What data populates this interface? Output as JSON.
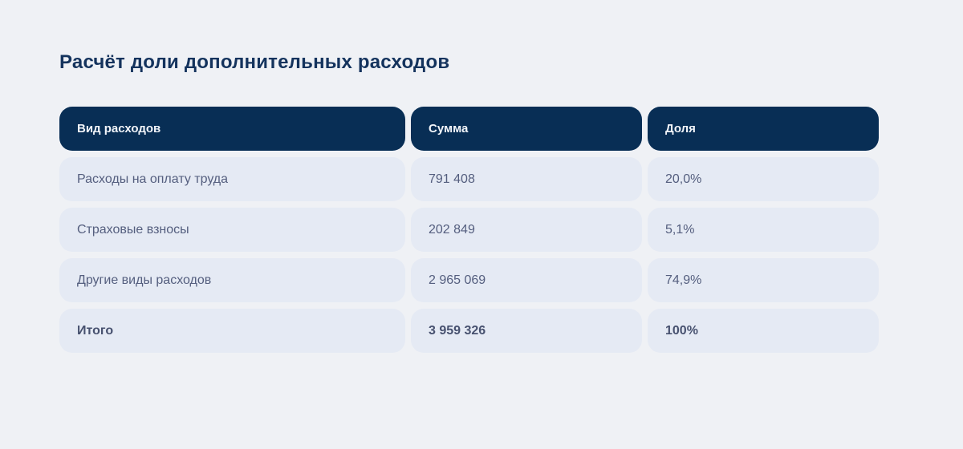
{
  "page_title": "Расчёт доли дополнительных расходов",
  "colors": {
    "page_background": "#eff1f5",
    "header_background": "#082e55",
    "header_text": "#f2f5fa",
    "cell_background": "#e5eaf4",
    "cell_text": "#545e7e",
    "title_text": "#14335d"
  },
  "table": {
    "columns": [
      "Вид расходов",
      "Сумма",
      "Доля"
    ],
    "rows": [
      {
        "name": "Расходы на оплату труда",
        "sum": "791 408",
        "share": "20,0%"
      },
      {
        "name": "Страховые взносы",
        "sum": "202 849",
        "share": "5,1%"
      },
      {
        "name": "Другие виды расходов",
        "sum": "2 965 069",
        "share": "74,9%"
      },
      {
        "name": "Итого",
        "sum": "3 959 326",
        "share": "100%"
      }
    ]
  },
  "chart_data": {
    "type": "table",
    "title": "Расчёт доли дополнительных расходов",
    "columns": [
      "Вид расходов",
      "Сумма",
      "Доля"
    ],
    "rows": [
      [
        "Расходы на оплату труда",
        791408,
        "20,0%"
      ],
      [
        "Страховые взносы",
        202849,
        "5,1%"
      ],
      [
        "Другие виды расходов",
        2965069,
        "74,9%"
      ],
      [
        "Итого",
        3959326,
        "100%"
      ]
    ]
  }
}
